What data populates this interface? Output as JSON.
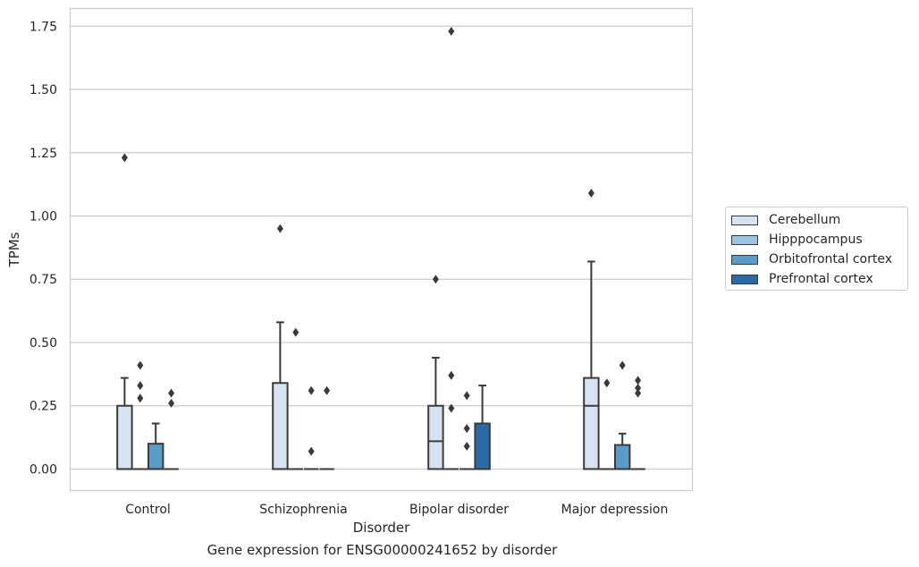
{
  "chart_data": {
    "type": "boxplot",
    "xlabel": "Disorder",
    "ylabel": "TPMs",
    "caption": "Gene expression for ENSG00000241652 by disorder",
    "categories": [
      "Control",
      "Schizophrenia",
      "Bipolar disorder",
      "Major depression"
    ],
    "ylim": [
      -0.085,
      1.82
    ],
    "yticks": [
      0.0,
      0.25,
      0.5,
      0.75,
      1.0,
      1.25,
      1.5,
      1.75
    ],
    "ytick_labels": [
      "0.00",
      "0.25",
      "0.50",
      "0.75",
      "1.00",
      "1.25",
      "1.50",
      "1.75"
    ],
    "grid": "horizontal",
    "legend_position": "right",
    "series": [
      {
        "name": "Cerebellum",
        "color": "#d6e4f1",
        "boxes": [
          {
            "q1": 0.0,
            "median": 0.0,
            "q3": 0.25,
            "whisker_low": 0.0,
            "whisker_high": 0.36,
            "outliers": [
              1.23
            ]
          },
          {
            "q1": 0.0,
            "median": 0.0,
            "q3": 0.34,
            "whisker_low": 0.0,
            "whisker_high": 0.58,
            "outliers": [
              0.95
            ]
          },
          {
            "q1": 0.0,
            "median": 0.11,
            "q3": 0.25,
            "whisker_low": 0.0,
            "whisker_high": 0.44,
            "outliers": [
              0.75
            ]
          },
          {
            "q1": 0.0,
            "median": 0.25,
            "q3": 0.36,
            "whisker_low": 0.0,
            "whisker_high": 0.82,
            "outliers": [
              1.09
            ]
          }
        ]
      },
      {
        "name": "Hipppocampus",
        "color": "#9fc5de",
        "boxes": [
          {
            "q1": 0.0,
            "median": 0.0,
            "q3": 0.0,
            "whisker_low": 0.0,
            "whisker_high": 0.0,
            "outliers": [
              0.41,
              0.33,
              0.28
            ]
          },
          {
            "q1": 0.0,
            "median": 0.0,
            "q3": 0.0,
            "whisker_low": 0.0,
            "whisker_high": 0.0,
            "outliers": [
              0.54
            ]
          },
          {
            "q1": 0.0,
            "median": 0.0,
            "q3": 0.0,
            "whisker_low": 0.0,
            "whisker_high": 0.0,
            "outliers": [
              1.73,
              0.37,
              0.24
            ]
          },
          {
            "q1": 0.0,
            "median": 0.0,
            "q3": 0.0,
            "whisker_low": 0.0,
            "whisker_high": 0.0,
            "outliers": [
              0.34
            ]
          }
        ]
      },
      {
        "name": "Orbitofrontal cortex",
        "color": "#5b9bc8",
        "boxes": [
          {
            "q1": 0.0,
            "median": 0.0,
            "q3": 0.1,
            "whisker_low": 0.0,
            "whisker_high": 0.18,
            "outliers": []
          },
          {
            "q1": 0.0,
            "median": 0.0,
            "q3": 0.0,
            "whisker_low": 0.0,
            "whisker_high": 0.0,
            "outliers": [
              0.31,
              0.07
            ]
          },
          {
            "q1": 0.0,
            "median": 0.0,
            "q3": 0.0,
            "whisker_low": 0.0,
            "whisker_high": 0.0,
            "outliers": [
              0.29,
              0.16,
              0.09
            ]
          },
          {
            "q1": 0.0,
            "median": 0.0,
            "q3": 0.095,
            "whisker_low": 0.0,
            "whisker_high": 0.14,
            "outliers": [
              0.41
            ]
          }
        ]
      },
      {
        "name": "Prefrontal cortex",
        "color": "#2a6aa8",
        "boxes": [
          {
            "q1": 0.0,
            "median": 0.0,
            "q3": 0.0,
            "whisker_low": 0.0,
            "whisker_high": 0.0,
            "outliers": [
              0.3,
              0.26
            ]
          },
          {
            "q1": 0.0,
            "median": 0.0,
            "q3": 0.0,
            "whisker_low": 0.0,
            "whisker_high": 0.0,
            "outliers": [
              0.31
            ]
          },
          {
            "q1": 0.0,
            "median": 0.0,
            "q3": 0.18,
            "whisker_low": 0.0,
            "whisker_high": 0.33,
            "outliers": []
          },
          {
            "q1": 0.0,
            "median": 0.0,
            "q3": 0.0,
            "whisker_low": 0.0,
            "whisker_high": 0.0,
            "outliers": [
              0.35,
              0.32,
              0.3
            ]
          }
        ]
      }
    ]
  }
}
